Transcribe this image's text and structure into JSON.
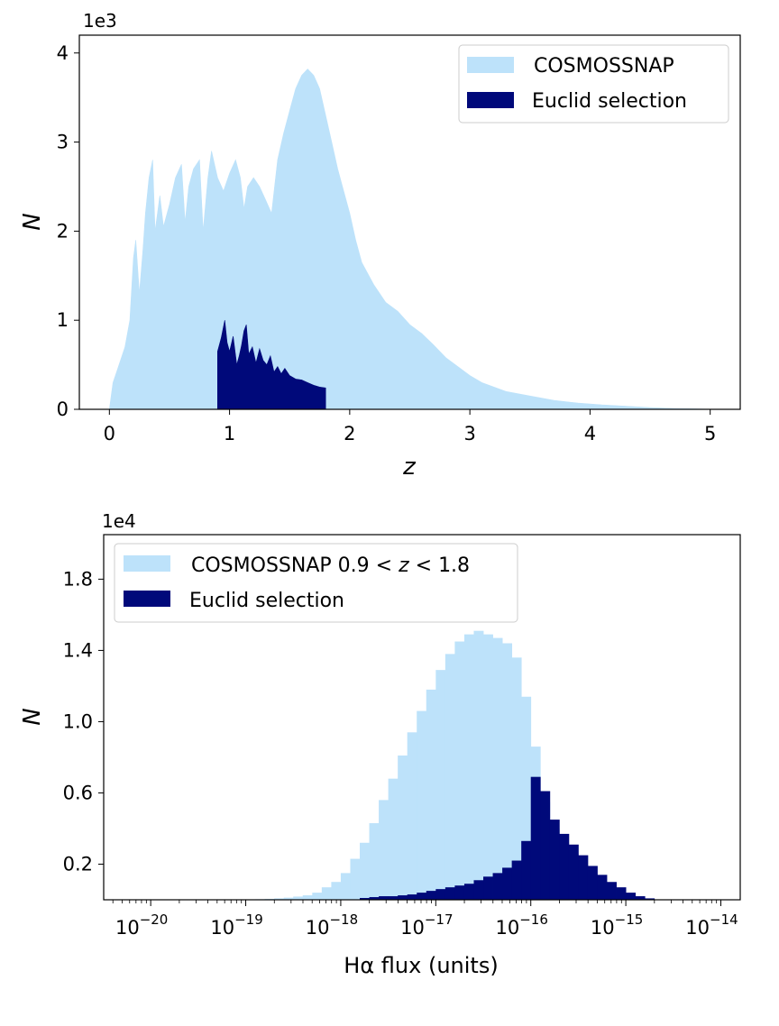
{
  "colors": {
    "all": "#bde2fa",
    "euclid": "#00097a"
  },
  "chart_data": [
    {
      "type": "bar",
      "xlabel": "z",
      "ylabel": "N",
      "y_multiplier": "1e3",
      "xlim": [
        -0.25,
        5.25
      ],
      "ylim": [
        0,
        4.2
      ],
      "xticks": [
        {
          "v": 0,
          "label": "0"
        },
        {
          "v": 1,
          "label": "1"
        },
        {
          "v": 2,
          "label": "2"
        },
        {
          "v": 3,
          "label": "3"
        },
        {
          "v": 4,
          "label": "4"
        },
        {
          "v": 5,
          "label": "5"
        }
      ],
      "yticks": [
        {
          "v": 0,
          "label": "0"
        },
        {
          "v": 1,
          "label": "1"
        },
        {
          "v": 2,
          "label": "2"
        },
        {
          "v": 3,
          "label": "3"
        },
        {
          "v": 4,
          "label": "4"
        }
      ],
      "legend_position": "top-right",
      "series": [
        {
          "name": "COSMOSSNAP",
          "color_key": "all",
          "points": [
            [
              0,
              0
            ],
            [
              0.03,
              0.3
            ],
            [
              0.08,
              0.5
            ],
            [
              0.13,
              0.7
            ],
            [
              0.17,
              1.0
            ],
            [
              0.2,
              1.7
            ],
            [
              0.22,
              1.9
            ],
            [
              0.25,
              1.3
            ],
            [
              0.28,
              1.8
            ],
            [
              0.3,
              2.2
            ],
            [
              0.33,
              2.6
            ],
            [
              0.36,
              2.8
            ],
            [
              0.38,
              2.0
            ],
            [
              0.42,
              2.4
            ],
            [
              0.45,
              2.05
            ],
            [
              0.5,
              2.3
            ],
            [
              0.55,
              2.6
            ],
            [
              0.6,
              2.75
            ],
            [
              0.63,
              2.1
            ],
            [
              0.66,
              2.5
            ],
            [
              0.7,
              2.7
            ],
            [
              0.75,
              2.8
            ],
            [
              0.78,
              2.0
            ],
            [
              0.82,
              2.6
            ],
            [
              0.85,
              2.9
            ],
            [
              0.9,
              2.6
            ],
            [
              0.95,
              2.45
            ],
            [
              1.0,
              2.65
            ],
            [
              1.05,
              2.8
            ],
            [
              1.09,
              2.6
            ],
            [
              1.12,
              2.25
            ],
            [
              1.15,
              2.5
            ],
            [
              1.2,
              2.6
            ],
            [
              1.25,
              2.5
            ],
            [
              1.3,
              2.35
            ],
            [
              1.35,
              2.2
            ],
            [
              1.4,
              2.8
            ],
            [
              1.45,
              3.1
            ],
            [
              1.5,
              3.35
            ],
            [
              1.55,
              3.6
            ],
            [
              1.6,
              3.75
            ],
            [
              1.65,
              3.82
            ],
            [
              1.7,
              3.75
            ],
            [
              1.75,
              3.6
            ],
            [
              1.8,
              3.3
            ],
            [
              1.85,
              3.0
            ],
            [
              1.9,
              2.7
            ],
            [
              1.95,
              2.45
            ],
            [
              2.0,
              2.2
            ],
            [
              2.05,
              1.9
            ],
            [
              2.1,
              1.65
            ],
            [
              2.2,
              1.4
            ],
            [
              2.3,
              1.2
            ],
            [
              2.4,
              1.1
            ],
            [
              2.5,
              0.95
            ],
            [
              2.6,
              0.85
            ],
            [
              2.7,
              0.72
            ],
            [
              2.8,
              0.58
            ],
            [
              2.9,
              0.48
            ],
            [
              3.0,
              0.38
            ],
            [
              3.1,
              0.3
            ],
            [
              3.2,
              0.25
            ],
            [
              3.3,
              0.2
            ],
            [
              3.5,
              0.15
            ],
            [
              3.7,
              0.1
            ],
            [
              3.9,
              0.07
            ],
            [
              4.1,
              0.05
            ],
            [
              4.3,
              0.035
            ],
            [
              4.5,
              0.02
            ],
            [
              4.7,
              0.01
            ],
            [
              4.9,
              0.005
            ],
            [
              5.05,
              0
            ]
          ]
        },
        {
          "name": "Euclid selection",
          "color_key": "euclid",
          "points": [
            [
              0.9,
              0.65
            ],
            [
              0.93,
              0.8
            ],
            [
              0.96,
              1.0
            ],
            [
              0.98,
              0.75
            ],
            [
              1.0,
              0.65
            ],
            [
              1.03,
              0.82
            ],
            [
              1.06,
              0.5
            ],
            [
              1.08,
              0.6
            ],
            [
              1.1,
              0.72
            ],
            [
              1.12,
              0.88
            ],
            [
              1.14,
              0.95
            ],
            [
              1.16,
              0.62
            ],
            [
              1.19,
              0.7
            ],
            [
              1.22,
              0.52
            ],
            [
              1.25,
              0.68
            ],
            [
              1.28,
              0.55
            ],
            [
              1.31,
              0.5
            ],
            [
              1.34,
              0.6
            ],
            [
              1.37,
              0.42
            ],
            [
              1.4,
              0.48
            ],
            [
              1.43,
              0.4
            ],
            [
              1.46,
              0.46
            ],
            [
              1.5,
              0.38
            ],
            [
              1.55,
              0.34
            ],
            [
              1.6,
              0.33
            ],
            [
              1.65,
              0.3
            ],
            [
              1.7,
              0.27
            ],
            [
              1.75,
              0.25
            ],
            [
              1.8,
              0.24
            ]
          ]
        }
      ]
    },
    {
      "type": "bar",
      "xlabel": "Hα flux (units)",
      "ylabel": "N",
      "y_multiplier": "1e4",
      "x_scale": "log",
      "xlim": [
        3.2e-21,
        1.6e-14
      ],
      "ylim": [
        0,
        2.05
      ],
      "xticks": [
        {
          "v": 1e-20,
          "label": "10",
          "exp": "−20"
        },
        {
          "v": 1e-19,
          "label": "10",
          "exp": "−19"
        },
        {
          "v": 1e-18,
          "label": "10",
          "exp": "−18"
        },
        {
          "v": 1e-17,
          "label": "10",
          "exp": "−17"
        },
        {
          "v": 1e-16,
          "label": "10",
          "exp": "−16"
        },
        {
          "v": 1e-15,
          "label": "10",
          "exp": "−15"
        },
        {
          "v": 1e-14,
          "label": "10",
          "exp": "−14"
        }
      ],
      "yticks": [
        {
          "v": 0.2,
          "label": "0.2"
        },
        {
          "v": 0.6,
          "label": "0.6"
        },
        {
          "v": 1.0,
          "label": "1.0"
        },
        {
          "v": 1.4,
          "label": "1.4"
        },
        {
          "v": 1.8,
          "label": "1.8"
        }
      ],
      "legend_position": "top-left",
      "bin_edges_log10": {
        "start": -21.0,
        "step": 0.1
      },
      "series": [
        {
          "name": "COSMOSSNAP 0.9 < z < 1.8",
          "legend_parts": [
            "COSMOSSNAP 0.9",
            "<",
            "z",
            "<",
            "1.8"
          ],
          "color_key": "all",
          "values": [
            0,
            0,
            0,
            0,
            0,
            0,
            0,
            0,
            0,
            0,
            0,
            0,
            0,
            0,
            0,
            0,
            0,
            0,
            0,
            0,
            0,
            0.003,
            0.005,
            0.008,
            0.012,
            0.018,
            0.025,
            0.04,
            0.07,
            0.1,
            0.15,
            0.23,
            0.32,
            0.43,
            0.56,
            0.68,
            0.81,
            0.94,
            1.06,
            1.18,
            1.29,
            1.38,
            1.45,
            1.49,
            1.51,
            1.49,
            1.47,
            1.44,
            1.36,
            1.14,
            0.86,
            0.55,
            0.4,
            0.32,
            0.26,
            0.2,
            0.15,
            0.1,
            0.07,
            0.04,
            0.025,
            0.012,
            0.005,
            0.002
          ]
        },
        {
          "name": "Euclid selection",
          "color_key": "euclid",
          "values": [
            0,
            0,
            0,
            0,
            0,
            0,
            0,
            0,
            0,
            0,
            0,
            0,
            0,
            0,
            0,
            0,
            0,
            0,
            0,
            0,
            0,
            0,
            0,
            0,
            0,
            0,
            0,
            0,
            0,
            0,
            0,
            0,
            0.01,
            0.015,
            0.02,
            0.02,
            0.025,
            0.03,
            0.04,
            0.05,
            0.06,
            0.07,
            0.08,
            0.09,
            0.11,
            0.13,
            0.15,
            0.18,
            0.22,
            0.33,
            0.69,
            0.61,
            0.45,
            0.37,
            0.31,
            0.25,
            0.19,
            0.14,
            0.1,
            0.07,
            0.04,
            0.02,
            0.008,
            0.002
          ]
        }
      ]
    }
  ]
}
